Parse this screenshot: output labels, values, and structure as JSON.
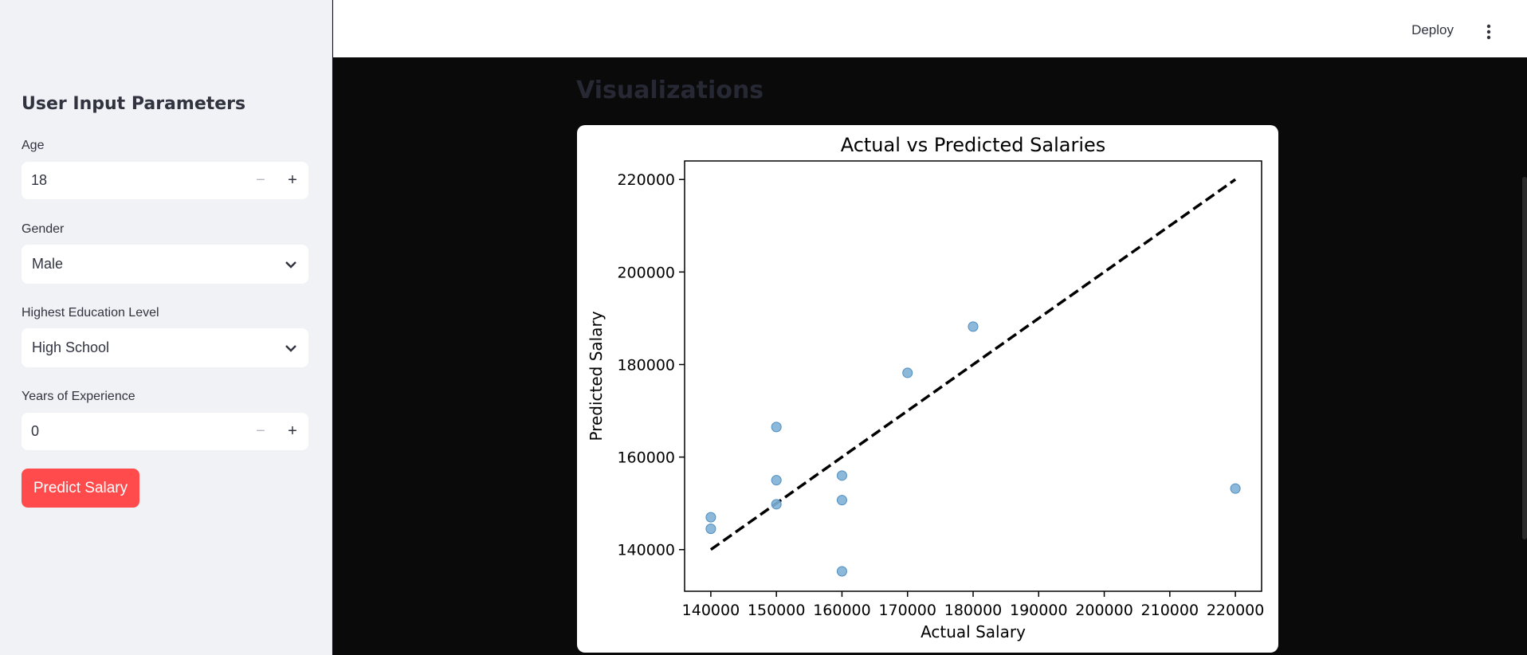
{
  "header": {
    "deploy_label": "Deploy",
    "menu_icon": "vertical-dots-icon"
  },
  "sidebar": {
    "title": "User Input Parameters",
    "age": {
      "label": "Age",
      "value": "18",
      "minus": "−",
      "plus": "+"
    },
    "gender": {
      "label": "Gender",
      "value": "Male"
    },
    "education": {
      "label": "Highest Education Level",
      "value": "High School"
    },
    "experience": {
      "label": "Years of Experience",
      "value": "0",
      "minus": "−",
      "plus": "+"
    },
    "predict_label": "Predict Salary"
  },
  "main": {
    "section_title": "Visualizations"
  },
  "colors": {
    "accent": "#ff4b4b",
    "sidebar_bg": "#f0f2f6",
    "main_bg": "#0a0a0a",
    "point": "#7fb0d6",
    "point_edge": "#4f8ec0"
  },
  "chart_data": {
    "type": "scatter",
    "title": "Actual vs Predicted Salaries",
    "xlabel": "Actual Salary",
    "ylabel": "Predicted Salary",
    "xlim": [
      136000,
      224000
    ],
    "ylim": [
      131000,
      224000
    ],
    "xticks": [
      140000,
      150000,
      160000,
      170000,
      180000,
      190000,
      200000,
      210000,
      220000
    ],
    "yticks": [
      140000,
      160000,
      180000,
      200000,
      220000
    ],
    "grid": false,
    "points": [
      {
        "x": 140000,
        "y": 147000
      },
      {
        "x": 140000,
        "y": 144500
      },
      {
        "x": 150000,
        "y": 166500
      },
      {
        "x": 150000,
        "y": 155000
      },
      {
        "x": 150000,
        "y": 149800
      },
      {
        "x": 160000,
        "y": 156000
      },
      {
        "x": 160000,
        "y": 150700
      },
      {
        "x": 160000,
        "y": 135300
      },
      {
        "x": 170000,
        "y": 178200
      },
      {
        "x": 180000,
        "y": 188200
      },
      {
        "x": 220000,
        "y": 153200
      }
    ],
    "reference_line": {
      "x": [
        140000,
        220000
      ],
      "y": [
        140000,
        220000
      ],
      "style": "dashed"
    }
  }
}
